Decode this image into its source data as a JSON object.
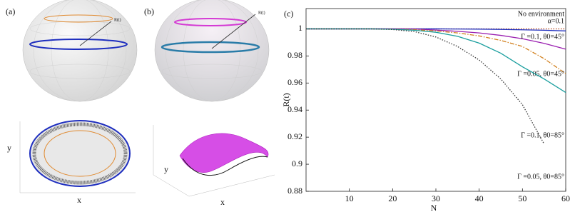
{
  "panels": {
    "a": {
      "label": "(a)",
      "vector_label": "R(t)",
      "x_label": "x",
      "y_label": "y"
    },
    "b": {
      "label": "(b)",
      "vector_label": "R(t)",
      "x_label": "x",
      "y_label": "y"
    }
  },
  "chart_data": {
    "type": "line",
    "panel_label": "(c)",
    "x_label": "N",
    "y_label": "R(t)",
    "x": [
      0,
      5,
      10,
      15,
      20,
      25,
      30,
      35,
      40,
      45,
      50,
      55,
      60
    ],
    "series": [
      {
        "name": "No environment",
        "color": "#b5481f",
        "dash": "dotted",
        "values": [
          1,
          1,
          1,
          1,
          1,
          1,
          1,
          1,
          1,
          1,
          1,
          1,
          1
        ]
      },
      {
        "name": "α=0.1",
        "color": "#1f2fbf",
        "dash": "solid",
        "values": [
          1,
          1,
          1,
          1,
          1,
          1,
          1,
          0.9999,
          0.9998,
          0.9996,
          0.9993,
          0.999,
          0.9985
        ]
      },
      {
        "name": "Γ =0.1, θ0=45°",
        "color": "#9a1fb0",
        "dash": "solid",
        "values": [
          1,
          1,
          1,
          1,
          1,
          0.9999,
          0.9991,
          0.9982,
          0.997,
          0.9952,
          0.9927,
          0.9893,
          0.985
        ]
      },
      {
        "name": "Γ =0.05, θ0=45°",
        "color": "#d2801e",
        "dash": "dashdot",
        "values": [
          1,
          1,
          1,
          1,
          0.9998,
          0.9994,
          0.9985,
          0.997,
          0.9948,
          0.9915,
          0.987,
          0.978,
          0.967
        ]
      },
      {
        "name": "Γ =0.1, θ0=85°",
        "color": "#1a9e9e",
        "dash": "solid",
        "values": [
          1,
          1,
          1,
          1,
          0.9997,
          0.999,
          0.9975,
          0.9945,
          0.9895,
          0.982,
          0.972,
          0.963,
          0.953
        ]
      },
      {
        "name": "Γ =0.05, θ0=85°",
        "color": "#333333",
        "dash": "dotted",
        "values": [
          1,
          1,
          1,
          1,
          0.9995,
          0.998,
          0.994,
          0.987,
          0.977,
          0.963,
          0.944,
          0.915,
          null
        ]
      }
    ],
    "xlim": [
      0,
      60
    ],
    "xticks": [
      10,
      20,
      30,
      40,
      50,
      60
    ],
    "ylim": [
      0.88,
      1.015
    ],
    "yticks": [
      {
        "value": 0.88,
        "label": "0.88"
      },
      {
        "value": 0.9,
        "label": "0.9"
      },
      {
        "value": 0.92,
        "label": "0.92"
      },
      {
        "value": 0.94,
        "label": "0.94"
      },
      {
        "value": 0.96,
        "label": "0.96"
      },
      {
        "value": 0.98,
        "label": "0.98"
      },
      1
    ]
  }
}
